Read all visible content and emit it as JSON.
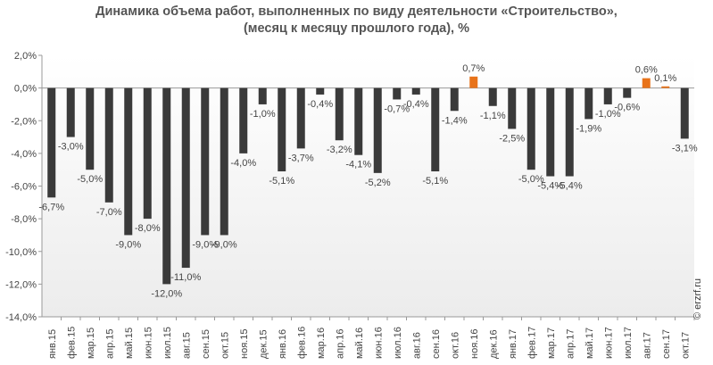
{
  "chart_data": {
    "type": "bar",
    "title": "Динамика объема работ, выполненных по виду деятельности «Строительство»,",
    "subtitle": "(месяц к месяцу прошлого года), %",
    "xlabel": "",
    "ylabel": "",
    "ylim": [
      -14,
      2
    ],
    "yticks": [
      "2,0%",
      "0,0%",
      "-2,0%",
      "-4,0%",
      "-6,0%",
      "-8,0%",
      "-10,0%",
      "-12,0%",
      "-14,0%"
    ],
    "ytick_values": [
      2,
      0,
      -2,
      -4,
      -6,
      -8,
      -10,
      -12,
      -14
    ],
    "grid": false,
    "categories": [
      "янв.15",
      "фев.15",
      "мар.15",
      "апр.15",
      "май.15",
      "июн.15",
      "июл.15",
      "авг.15",
      "сен.15",
      "окт.15",
      "ноя.15",
      "дек.15",
      "янв.16",
      "фев.16",
      "мар.16",
      "апр.16",
      "май.16",
      "июн.16",
      "июл.16",
      "авг.16",
      "сен.16",
      "окт.16",
      "ноя.16",
      "дек.16",
      "янв.17",
      "фев.17",
      "мар.17",
      "апр.17",
      "май.17",
      "июн.17",
      "июл.17",
      "авг.17",
      "сен.17",
      "окт.17"
    ],
    "values": [
      -6.7,
      -3.0,
      -5.0,
      -7.0,
      -9.0,
      -8.0,
      -12.0,
      -11.0,
      -9.0,
      -9.0,
      -4.0,
      -1.0,
      -5.1,
      -3.7,
      -0.4,
      -3.2,
      -4.1,
      -5.2,
      -0.7,
      -0.4,
      -5.1,
      -1.4,
      0.7,
      -1.1,
      -2.5,
      -5.0,
      -5.4,
      -5.4,
      -1.9,
      -1.0,
      -0.6,
      0.6,
      0.1,
      -3.1
    ],
    "labels": [
      "-6,7%",
      "-3,0%",
      "-5,0%",
      "-7,0%",
      "-9,0%",
      "-8,0%",
      "-12,0%",
      "-11,0%",
      "-9,0%",
      "-9,0%",
      "-4,0%",
      "-1,0%",
      "-5,1%",
      "-3,7%",
      "-0,4%",
      "-3,2%",
      "-4,1%",
      "-5,2%",
      "-0,7%",
      "-0,4%",
      "-5,1%",
      "-1,4%",
      "0,7%",
      "-1,1%",
      "-2,5%",
      "-5,0%",
      "-5,4%",
      "-5,4%",
      "-1,9%",
      "-1,0%",
      "-0,6%",
      "0,6%",
      "0,1%",
      "-3,1%"
    ],
    "colors": {
      "negative": "#3a3a3a",
      "positive": "#e8731a",
      "label": "#444444",
      "axis": "#999999",
      "title": "#555555"
    }
  },
  "watermark": "© erzrf.ru"
}
